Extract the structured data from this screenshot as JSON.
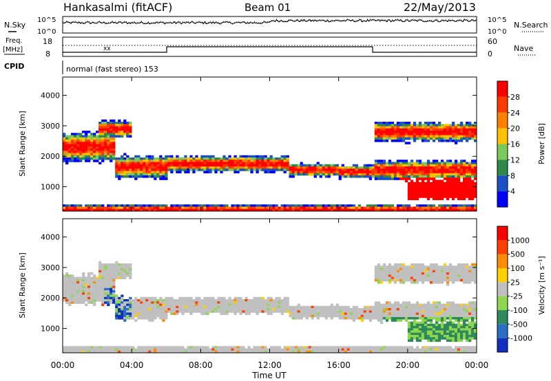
{
  "header": {
    "station": "Hankasalmi (fitACF)",
    "beam": "Beam 01",
    "date": "22/May/2013"
  },
  "strips": {
    "nsky_label": "N.Sky",
    "nsearch_label": "N.Search",
    "noise_ticks": [
      "10^5",
      "10^0"
    ],
    "freq_label_1": "Freq.",
    "freq_label_2": "[MHz]",
    "freq_ticks": [
      "18",
      "8"
    ],
    "nave_label": "Nave",
    "nave_ticks": [
      "60",
      "0"
    ],
    "cpid_label": "CPID",
    "cpid_text": "normal (fast stereo) 153"
  },
  "colors": {
    "power": [
      "#0000ff",
      "#1a4fc8",
      "#2f8a4a",
      "#7ac95a",
      "#ffc000",
      "#ff8000",
      "#ff3b00",
      "#ff0000"
    ],
    "velocity": [
      "#1030c0",
      "#2a6ec8",
      "#2e8a5a",
      "#8ed650",
      "#c0c0c0",
      "#ffd000",
      "#ff8c00",
      "#ff4000",
      "#ff0000"
    ]
  },
  "chart_data": [
    {
      "type": "heatmap",
      "panel": "power",
      "ylabel": "Slant Range [km]",
      "ylim": [
        200,
        4600
      ],
      "yticks": [
        "4000",
        "3000",
        "2000",
        "1000"
      ],
      "colorbar_label": "Power [dB]",
      "colorbar_ticks": [
        "28",
        "24",
        "20",
        "16",
        "12",
        "8",
        "4"
      ],
      "scale": [
        0,
        32
      ]
    },
    {
      "type": "heatmap",
      "panel": "velocity",
      "ylabel": "Slant Range [km]",
      "ylim": [
        200,
        4600
      ],
      "yticks": [
        "4000",
        "3000",
        "2000",
        "1000"
      ],
      "colorbar_label": "Velocity [m s⁻¹]",
      "colorbar_ticks": [
        "1000",
        "500",
        "100",
        "25",
        "-25",
        "-100",
        "-500",
        "-1000"
      ],
      "scale": [
        -1000,
        1000
      ]
    }
  ],
  "xaxis": {
    "label": "Time UT",
    "ticks": [
      "00:00",
      "04:00",
      "08:00",
      "12:00",
      "16:00",
      "20:00",
      "00:00"
    ]
  }
}
